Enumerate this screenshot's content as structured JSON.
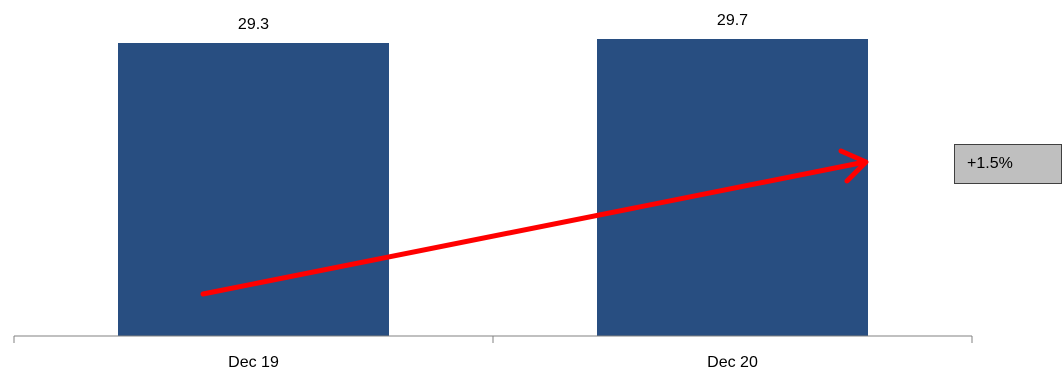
{
  "chart_data": {
    "type": "bar",
    "categories": [
      "Dec 19",
      "Dec 20"
    ],
    "values": [
      29.3,
      29.7
    ],
    "data_labels": [
      "29.3",
      "29.7"
    ],
    "bar_color": "#284e81",
    "annotation": {
      "text": "+1.5%",
      "arrow_color": "#ff0000"
    },
    "grid": false,
    "legend": "none"
  }
}
